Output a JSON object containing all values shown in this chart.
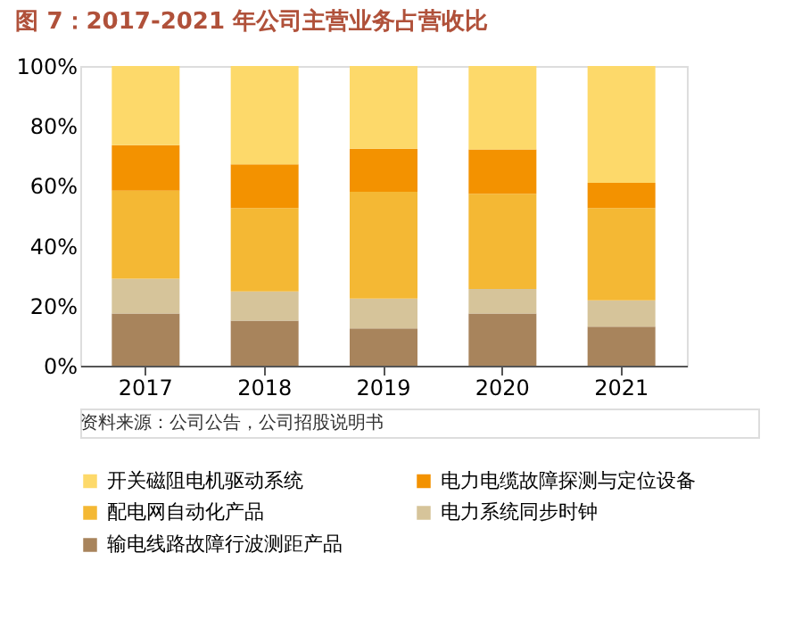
{
  "chart_data": {
    "type": "bar",
    "stacked": true,
    "title": "图 7：2017-2021 年公司主营业务占营收比",
    "categories": [
      "2017",
      "2018",
      "2019",
      "2020",
      "2021"
    ],
    "series": [
      {
        "name": "输电线路故障行波测距产品",
        "color": "#a8845c",
        "values": [
          17.4,
          15,
          12.4,
          17.4,
          13
        ]
      },
      {
        "name": "电力系统同步时钟",
        "color": "#d6c49a",
        "values": [
          11.6,
          9.8,
          10,
          8.2,
          8.8
        ]
      },
      {
        "name": "配电网自动化产品",
        "color": "#f4b834",
        "values": [
          29.4,
          27.8,
          35.6,
          31.8,
          30.8
        ]
      },
      {
        "name": "电力电缆故障探测与定位设备",
        "color": "#f39200",
        "values": [
          15.2,
          14.6,
          14.4,
          14.8,
          8.4
        ]
      },
      {
        "name": "开关磁阻电机驱动系统",
        "color": "#fdd96a",
        "values": [
          26.4,
          32.8,
          27.6,
          27.8,
          39
        ]
      }
    ],
    "ylim": [
      0,
      100
    ],
    "yticks": [
      {
        "value": 0,
        "label": "0%"
      },
      {
        "value": 20,
        "label": "20%"
      },
      {
        "value": 40,
        "label": "40%"
      },
      {
        "value": 60,
        "label": "60%"
      },
      {
        "value": 80,
        "label": "80%"
      },
      {
        "value": 100,
        "label": "100%"
      }
    ],
    "grid": false,
    "legend": "bottom",
    "annotations": [
      "资料来源：公司公告，公司招股说明书"
    ]
  }
}
